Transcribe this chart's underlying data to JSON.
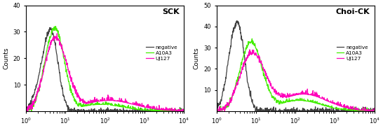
{
  "panels": [
    {
      "title": "SCK",
      "ylim": [
        0,
        40
      ],
      "yticks": [
        10,
        20,
        30,
        40
      ],
      "xlim": [
        1,
        10000
      ]
    },
    {
      "title": "Choi-CK",
      "ylim": [
        0,
        50
      ],
      "yticks": [
        10,
        20,
        30,
        40,
        50
      ],
      "xlim": [
        1,
        10000
      ]
    }
  ],
  "legend_labels": [
    "negative",
    "A10A3",
    "UJ127"
  ],
  "colors": {
    "negative": "#404040",
    "A10A3": "#44ee00",
    "UJ127": "#ff00bb"
  },
  "ylabel": "Counts",
  "line_width": 0.9,
  "background_color": "#ffffff",
  "spine_color": "#000000"
}
